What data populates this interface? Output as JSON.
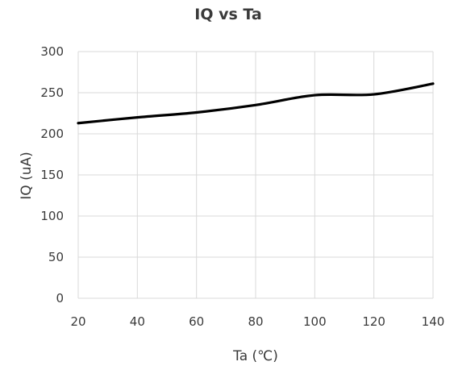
{
  "chart_data": {
    "type": "line",
    "title": "IQ vs Ta",
    "xlabel": "Ta (℃)",
    "ylabel": "IQ (uA)",
    "xlim": [
      20,
      140
    ],
    "ylim": [
      0,
      300
    ],
    "x_ticks": [
      "20",
      "40",
      "60",
      "80",
      "100",
      "120",
      "140"
    ],
    "y_ticks": [
      "0",
      "50",
      "100",
      "150",
      "200",
      "250",
      "300"
    ],
    "grid": true,
    "legend": "none",
    "series": [
      {
        "color": "#000000",
        "x": [
          20,
          40,
          60,
          80,
          100,
          120,
          140
        ],
        "y": [
          213,
          220,
          226,
          235,
          247,
          248,
          261
        ]
      }
    ]
  }
}
